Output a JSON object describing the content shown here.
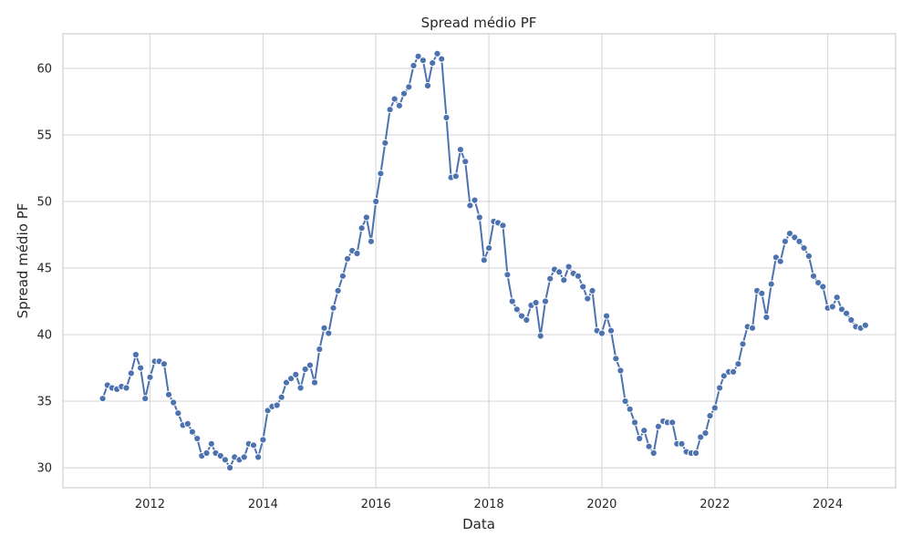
{
  "chart_data": {
    "type": "line",
    "title": "Spread médio PF",
    "xlabel": "Data",
    "ylabel": "Spread médio PF",
    "x_ticks": [
      "2012",
      "2014",
      "2016",
      "2018",
      "2020",
      "2022",
      "2024"
    ],
    "y_ticks": [
      30,
      35,
      40,
      45,
      50,
      55,
      60
    ],
    "ylim": [
      28.5,
      62.6
    ],
    "xlim": [
      "2010-06-17",
      "2025-03-15"
    ],
    "grid": true,
    "color": "#4c72b0",
    "series": [
      {
        "x": [
          "2011-03",
          "2011-04",
          "2011-05",
          "2011-06",
          "2011-07",
          "2011-08",
          "2011-09",
          "2011-10",
          "2011-11",
          "2011-12",
          "2012-01",
          "2012-02",
          "2012-03",
          "2012-04",
          "2012-05",
          "2012-06",
          "2012-07",
          "2012-08",
          "2012-09",
          "2012-10",
          "2012-11",
          "2012-12",
          "2013-01",
          "2013-02",
          "2013-03",
          "2013-04",
          "2013-05",
          "2013-06",
          "2013-07",
          "2013-08",
          "2013-09",
          "2013-10",
          "2013-11",
          "2013-12",
          "2014-01",
          "2014-02",
          "2014-03",
          "2014-04",
          "2014-05",
          "2014-06",
          "2014-07",
          "2014-08",
          "2014-09",
          "2014-10",
          "2014-11",
          "2014-12",
          "2015-01",
          "2015-02",
          "2015-03",
          "2015-04",
          "2015-05",
          "2015-06",
          "2015-07",
          "2015-08",
          "2015-09",
          "2015-10",
          "2015-11",
          "2015-12",
          "2016-01",
          "2016-02",
          "2016-03",
          "2016-04",
          "2016-05",
          "2016-06",
          "2016-07",
          "2016-08",
          "2016-09",
          "2016-10",
          "2016-11",
          "2016-12",
          "2017-01",
          "2017-02",
          "2017-03",
          "2017-04",
          "2017-05",
          "2017-06",
          "2017-07",
          "2017-08",
          "2017-09",
          "2017-10",
          "2017-11",
          "2017-12",
          "2018-01",
          "2018-02",
          "2018-03",
          "2018-04",
          "2018-05",
          "2018-06",
          "2018-07",
          "2018-08",
          "2018-09",
          "2018-10",
          "2018-11",
          "2018-12",
          "2019-01",
          "2019-02",
          "2019-03",
          "2019-04",
          "2019-05",
          "2019-06",
          "2019-07",
          "2019-08",
          "2019-09",
          "2019-10",
          "2019-11",
          "2019-12",
          "2020-01",
          "2020-02",
          "2020-03",
          "2020-04",
          "2020-05",
          "2020-06",
          "2020-07",
          "2020-08",
          "2020-09",
          "2020-10",
          "2020-11",
          "2020-12",
          "2021-01",
          "2021-02",
          "2021-03",
          "2021-04",
          "2021-05",
          "2021-06",
          "2021-07",
          "2021-08",
          "2021-09",
          "2021-10",
          "2021-11",
          "2021-12",
          "2022-01",
          "2022-02",
          "2022-03",
          "2022-04",
          "2022-05",
          "2022-06",
          "2022-07",
          "2022-08",
          "2022-09",
          "2022-10",
          "2022-11",
          "2022-12",
          "2023-01",
          "2023-02",
          "2023-03",
          "2023-04",
          "2023-05",
          "2023-06",
          "2023-07",
          "2023-08",
          "2023-09",
          "2023-10",
          "2023-11",
          "2023-12",
          "2024-01",
          "2024-02",
          "2024-03",
          "2024-04",
          "2024-05",
          "2024-06",
          "2024-07",
          "2024-08",
          "2024-09"
        ],
        "values": [
          35.2,
          36.2,
          36.0,
          35.9,
          36.1,
          36.0,
          37.1,
          38.5,
          37.5,
          35.2,
          36.8,
          38.0,
          38.0,
          37.8,
          35.5,
          34.9,
          34.1,
          33.2,
          33.3,
          32.7,
          32.2,
          30.9,
          31.1,
          31.8,
          31.1,
          30.9,
          30.6,
          30.0,
          30.8,
          30.6,
          30.8,
          31.8,
          31.7,
          30.8,
          32.1,
          34.3,
          34.6,
          34.7,
          35.3,
          36.4,
          36.7,
          37.0,
          36.0,
          37.4,
          37.7,
          36.4,
          38.9,
          40.5,
          40.1,
          42.0,
          43.3,
          44.4,
          45.7,
          46.3,
          46.1,
          48.0,
          48.8,
          47.0,
          50.0,
          52.1,
          54.4,
          56.9,
          57.7,
          57.2,
          58.1,
          58.6,
          60.2,
          60.9,
          60.6,
          58.7,
          60.4,
          61.1,
          60.7,
          56.3,
          51.8,
          51.9,
          53.9,
          53.0,
          49.7,
          50.1,
          48.8,
          45.6,
          46.5,
          48.5,
          48.4,
          48.2,
          44.5,
          42.5,
          41.9,
          41.4,
          41.1,
          42.2,
          42.4,
          39.9,
          42.5,
          44.2,
          44.9,
          44.7,
          44.1,
          45.1,
          44.6,
          44.4,
          43.6,
          42.7,
          43.3,
          40.3,
          40.1,
          41.4,
          40.3,
          38.2,
          37.3,
          35.0,
          34.4,
          33.4,
          32.2,
          32.8,
          31.6,
          31.1,
          33.1,
          33.5,
          33.4,
          33.4,
          31.8,
          31.8,
          31.2,
          31.1,
          31.1,
          32.3,
          32.6,
          33.9,
          34.5,
          36.0,
          36.9,
          37.2,
          37.2,
          37.8,
          39.3,
          40.6,
          40.5,
          43.3,
          43.1,
          41.3,
          43.8,
          45.8,
          45.5,
          47.0,
          47.6,
          47.3,
          47.0,
          46.5,
          45.9,
          44.4,
          43.9,
          43.6,
          42.0,
          42.1,
          42.8,
          41.9,
          41.6,
          41.1,
          40.6,
          40.5,
          40.7
        ]
      }
    ]
  }
}
